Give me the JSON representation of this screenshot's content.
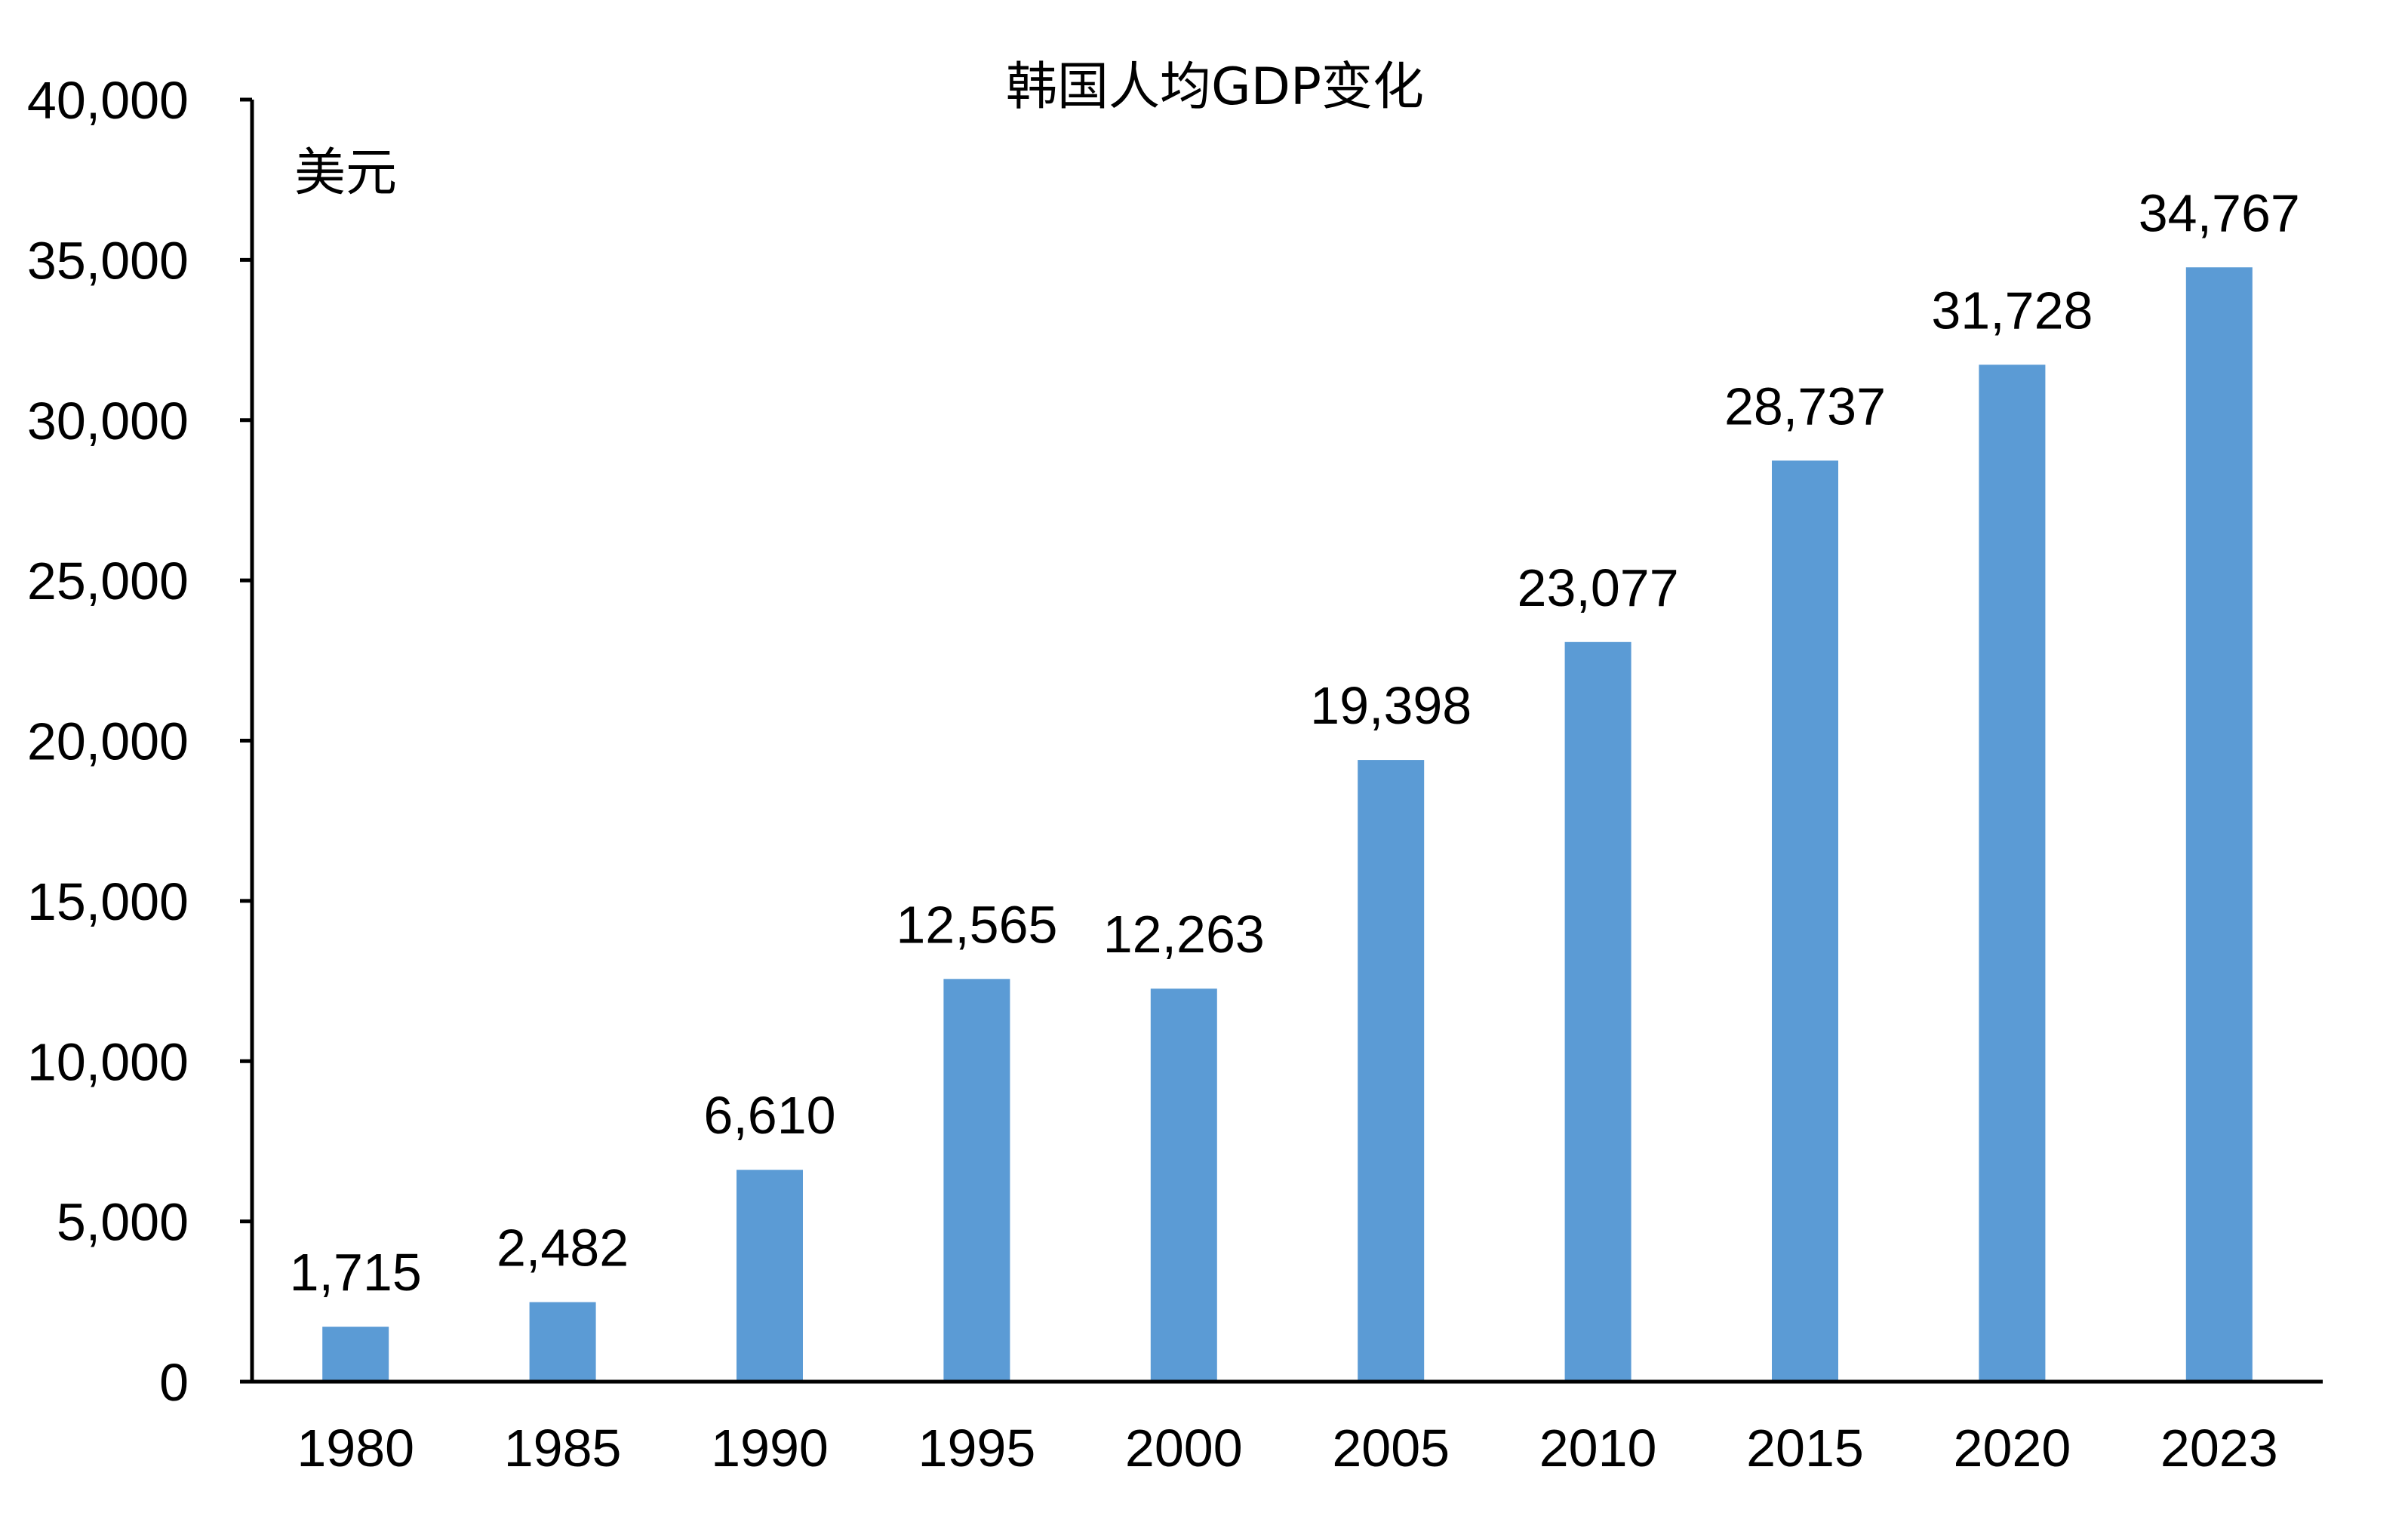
{
  "chart_data": {
    "type": "bar",
    "title": "韩国人均GDP变化",
    "unit_label": "美元",
    "categories": [
      "1980",
      "1985",
      "1990",
      "1995",
      "2000",
      "2005",
      "2010",
      "2015",
      "2020",
      "2023"
    ],
    "values": [
      1715,
      2482,
      6610,
      12565,
      12263,
      19398,
      23077,
      28737,
      31728,
      34767
    ],
    "value_labels": [
      "1,715",
      "2,482",
      "6,610",
      "12,565",
      "12,263",
      "19,398",
      "23,077",
      "28,737",
      "31,728",
      "34,767"
    ],
    "ylim": [
      0,
      40000
    ],
    "yticks": [
      0,
      5000,
      10000,
      15000,
      20000,
      25000,
      30000,
      35000,
      40000
    ],
    "ytick_labels": [
      "0",
      "5,000",
      "10,000",
      "15,000",
      "20,000",
      "25,000",
      "30,000",
      "35,000",
      "40,000"
    ],
    "grid": false,
    "legend": "none",
    "colors": {
      "bar": "#5B9BD5",
      "axis": "#000000",
      "text": "#000000"
    }
  }
}
